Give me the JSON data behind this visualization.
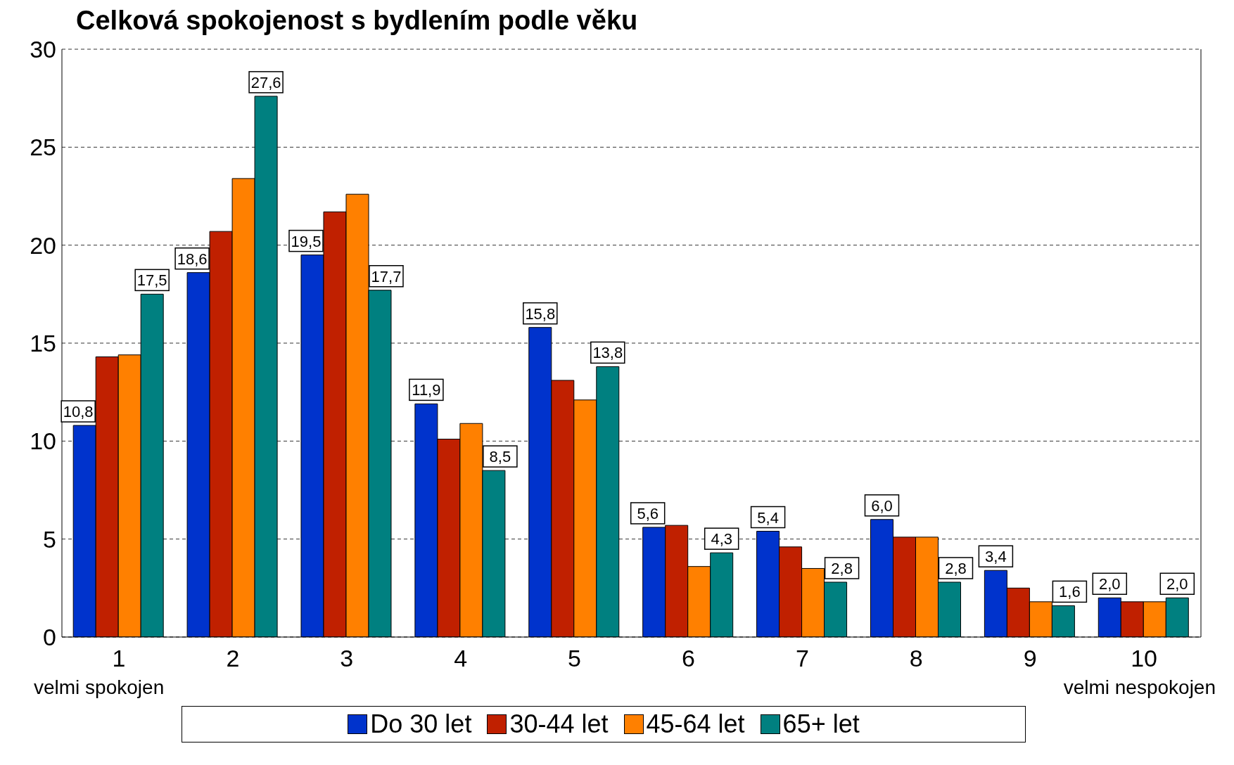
{
  "chart_data": {
    "type": "bar",
    "title": "Celková spokojenost s bydlením podle věku",
    "categories": [
      "1",
      "2",
      "3",
      "4",
      "5",
      "6",
      "7",
      "8",
      "9",
      "10"
    ],
    "series": [
      {
        "name": "Do 30 let",
        "color": "#0033cc",
        "values": [
          10.8,
          18.6,
          19.5,
          11.9,
          15.8,
          5.6,
          5.4,
          6.0,
          3.4,
          2.0
        ],
        "value_labels": [
          "10,8",
          "18,6",
          "19,5",
          "11,9",
          "15,8",
          "5,6",
          "5,4",
          "6,0",
          "3,4",
          "2,0"
        ]
      },
      {
        "name": "30-44 let",
        "color": "#c02000",
        "values": [
          14.3,
          20.7,
          21.7,
          10.1,
          13.1,
          5.7,
          4.6,
          5.1,
          2.5,
          1.8
        ]
      },
      {
        "name": "45-64 let",
        "color": "#ff8000",
        "values": [
          14.4,
          23.4,
          22.6,
          10.9,
          12.1,
          3.6,
          3.5,
          5.1,
          1.8,
          1.8
        ]
      },
      {
        "name": "65+ let",
        "color": "#008080",
        "values": [
          17.5,
          27.6,
          17.7,
          8.5,
          13.8,
          4.3,
          2.8,
          2.8,
          1.6,
          2.0
        ],
        "value_labels": [
          "17,5",
          "27,6",
          "17,7",
          "8,5",
          "13,8",
          "4,3",
          "2,8",
          "2,8",
          "1,6",
          "2,0"
        ]
      }
    ],
    "annotations": [
      "velmi spokojen",
      "velmi nespokojen"
    ],
    "ylim": [
      0,
      30
    ],
    "yticks": [
      0,
      5,
      10,
      15,
      20,
      25,
      30
    ],
    "grid": "y",
    "legend": "bottom"
  }
}
